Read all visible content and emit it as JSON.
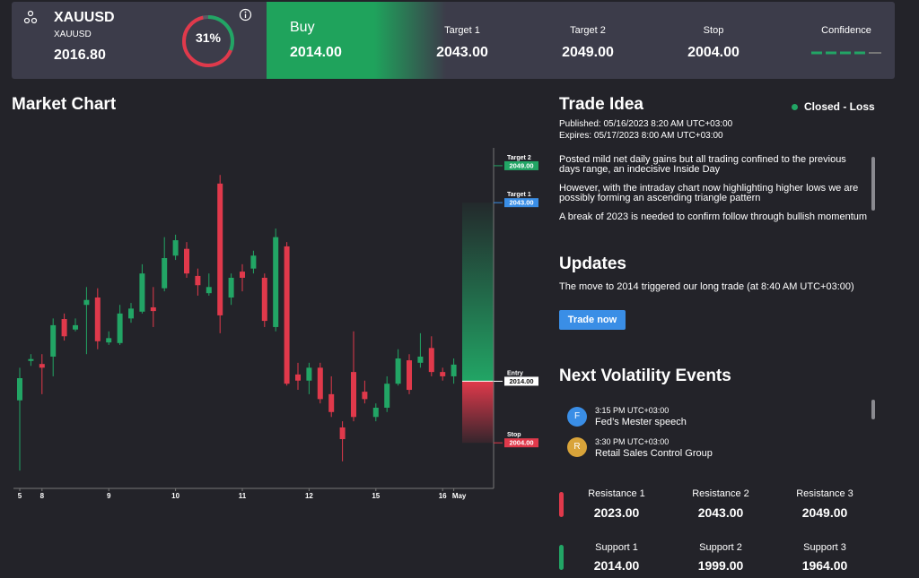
{
  "header": {
    "symbol": "XAUUSD",
    "subtitle": "XAUUSD",
    "price": "2016.80",
    "probability": {
      "value": 31,
      "label": "31%"
    },
    "direction": "Buy",
    "entry": "2014.00",
    "stats": [
      {
        "label": "Target 1",
        "value": "2043.00"
      },
      {
        "label": "Target 2",
        "value": "2049.00"
      },
      {
        "label": "Stop",
        "value": "2004.00"
      }
    ],
    "confidence_label": "Confidence"
  },
  "chart_data": {
    "type": "candlestick",
    "title": "Market Chart",
    "categories": [
      "5",
      null,
      "8",
      null,
      null,
      null,
      null,
      null,
      "9",
      null,
      null,
      null,
      null,
      null,
      "10",
      null,
      null,
      null,
      null,
      null,
      "11",
      null,
      null,
      null,
      null,
      null,
      "12",
      null,
      null,
      null,
      null,
      null,
      "15",
      null,
      null,
      null,
      null,
      null,
      "16",
      "May"
    ],
    "open": [
      2010.9,
      2017.3,
      2016.8,
      2018.0,
      2024.1,
      2022.4,
      2026.4,
      2027.6,
      2020.3,
      2020.2,
      2024.2,
      2025.3,
      2026.0,
      2029.1,
      2034.4,
      2035.5,
      2031.1,
      2028.3,
      2046.1,
      2027.6,
      2031.8,
      2032.3,
      2030.8,
      2022.8,
      2035.9,
      2015.1,
      2014.1,
      2016.2,
      2011.9,
      2006.5,
      2015.5,
      2012.3,
      2008.2,
      2009.7,
      2013.6,
      2017.4,
      2017.0,
      2019.4,
      2015.5,
      2014.8
    ],
    "high": [
      2016.2,
      2018.4,
      2018.4,
      2024.2,
      2025.0,
      2024.2,
      2029.3,
      2029.1,
      2022.1,
      2026.4,
      2026.7,
      2033.0,
      2029.3,
      2037.4,
      2037.8,
      2036.6,
      2032.3,
      2031.5,
      2047.5,
      2031.5,
      2033.0,
      2035.2,
      2031.5,
      2038.8,
      2036.6,
      2017.0,
      2017.0,
      2017.0,
      2014.8,
      2007.5,
      2022.1,
      2014.1,
      2010.4,
      2014.8,
      2019.2,
      2018.4,
      2021.8,
      2021.3,
      2016.2,
      2017.7
    ],
    "low": [
      1999.5,
      2016.5,
      2011.9,
      2014.8,
      2020.6,
      2022.1,
      2018.4,
      2019.2,
      2019.9,
      2019.9,
      2023.5,
      2025.0,
      2022.8,
      2028.6,
      2033.7,
      2030.8,
      2027.9,
      2027.9,
      2021.8,
      2026.4,
      2028.6,
      2031.5,
      2022.8,
      2022.1,
      2013.3,
      2012.6,
      2011.9,
      2010.4,
      2008.2,
      2001.0,
      2007.5,
      2010.4,
      2007.5,
      2009.0,
      2013.3,
      2011.9,
      2016.2,
      2014.8,
      2014.1,
      2013.6
    ],
    "close": [
      2014.5,
      2017.6,
      2016.2,
      2023.1,
      2021.3,
      2023.1,
      2027.2,
      2020.5,
      2021.0,
      2025.0,
      2025.8,
      2031.5,
      2025.4,
      2034.0,
      2036.9,
      2031.5,
      2029.6,
      2029.3,
      2024.7,
      2030.8,
      2030.8,
      2034.4,
      2023.8,
      2037.4,
      2013.6,
      2014.1,
      2016.2,
      2011.1,
      2009.0,
      2004.6,
      2008.2,
      2011.1,
      2009.7,
      2013.6,
      2017.7,
      2012.6,
      2018.0,
      2015.5,
      2014.8,
      2016.7
    ],
    "up_color": "#22a565",
    "down_color": "#e0394b",
    "ylim": [
      1996.6,
      2051.9
    ],
    "levels": [
      {
        "name": "Target 2",
        "value": 2049,
        "label": "2049.00",
        "color": "#22a565"
      },
      {
        "name": "Target 1",
        "value": 2043,
        "label": "2043.00",
        "color": "#3a8ee6"
      },
      {
        "name": "Entry",
        "value": 2014,
        "label": "2014.00",
        "color": "#ffffff"
      },
      {
        "name": "Stop",
        "value": 2004,
        "label": "2004.00",
        "color": "#e0394b"
      }
    ]
  },
  "trade_idea": {
    "title": "Trade Idea",
    "status": "Closed - Loss",
    "published": "Published:  05/16/2023 8:20 AM UTC+03:00",
    "expires": "Expires:  05/17/2023 8:00 AM UTC+03:00",
    "paragraphs": [
      "Posted mild net daily gains but all trading confined to the previous days range, an indecisive Inside Day",
      "However, with the intraday chart now highlighting higher lows we are possibly forming an ascending triangle pattern",
      "A break of 2023 is needed to confirm follow through bullish momentum"
    ]
  },
  "updates": {
    "title": "Updates",
    "text": "The move to 2014 triggered our long trade (at 8:40 AM UTC+03:00)",
    "button": "Trade now"
  },
  "events": {
    "title": "Next Volatility Events",
    "items": [
      {
        "icon": "F",
        "time": "3:15 PM UTC+03:00",
        "name": "Fed’s Mester speech"
      },
      {
        "icon": "R",
        "time": "3:30 PM UTC+03:00",
        "name": "Retail Sales Control Group"
      }
    ]
  },
  "levels": {
    "resistance": [
      {
        "label": "Resistance 1",
        "value": "2023.00"
      },
      {
        "label": "Resistance 2",
        "value": "2043.00"
      },
      {
        "label": "Resistance 3",
        "value": "2049.00"
      }
    ],
    "support": [
      {
        "label": "Support 1",
        "value": "2014.00"
      },
      {
        "label": "Support 2",
        "value": "1999.00"
      },
      {
        "label": "Support 3",
        "value": "1964.00"
      }
    ]
  }
}
